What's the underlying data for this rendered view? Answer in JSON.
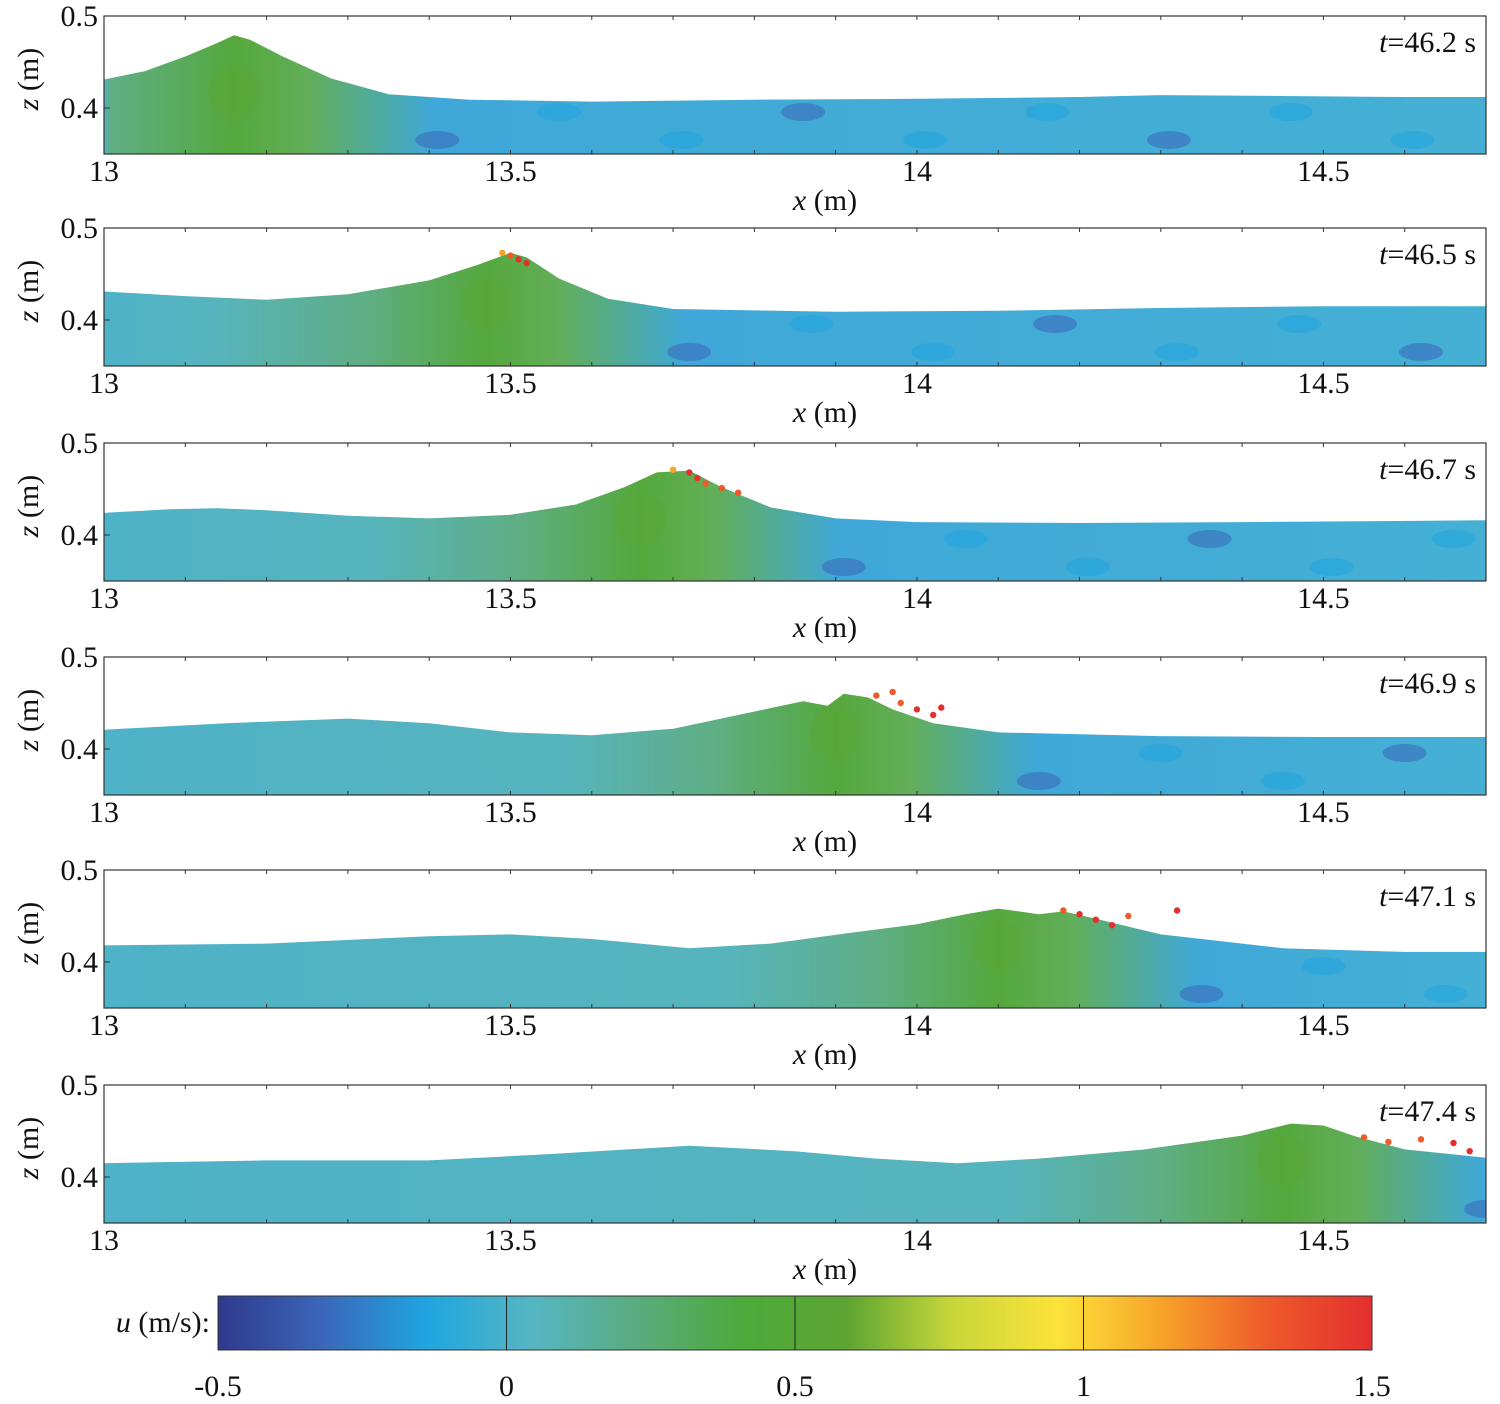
{
  "figure": {
    "xlabel_var": "x",
    "xlabel_unit": "(m)",
    "ylabel_var": "z",
    "ylabel_unit": "(m)",
    "time_prefix": "t",
    "time_unit": "s"
  },
  "chart_data": {
    "type": "heatmap",
    "description_field": "Horizontal velocity u over the free-surface water profile for six time instants",
    "xlim": [
      13,
      14.7
    ],
    "ylim": [
      0.35,
      0.5
    ],
    "x_ticks": [
      13,
      13.5,
      14,
      14.5
    ],
    "x_tick_labels": [
      "13",
      "13.5",
      "14",
      "14.5"
    ],
    "y_ticks": [
      0.4,
      0.5
    ],
    "y_tick_labels": [
      "0.4",
      "0.5"
    ],
    "grid": false,
    "panels": [
      {
        "time": "46.2",
        "surface": [
          [
            13.0,
            0.431
          ],
          [
            13.05,
            0.44
          ],
          [
            13.1,
            0.456
          ],
          [
            13.14,
            0.471
          ],
          [
            13.16,
            0.479
          ],
          [
            13.18,
            0.474
          ],
          [
            13.22,
            0.456
          ],
          [
            13.28,
            0.432
          ],
          [
            13.35,
            0.415
          ],
          [
            13.45,
            0.409
          ],
          [
            13.6,
            0.407
          ],
          [
            13.8,
            0.409
          ],
          [
            14.0,
            0.41
          ],
          [
            14.2,
            0.412
          ],
          [
            14.3,
            0.414
          ],
          [
            14.45,
            0.413
          ],
          [
            14.6,
            0.412
          ],
          [
            14.7,
            0.412
          ]
        ],
        "crests": [
          {
            "x": 13.16,
            "u": 0.55
          }
        ],
        "spray": []
      },
      {
        "time": "46.5",
        "surface": [
          [
            13.0,
            0.431
          ],
          [
            13.1,
            0.426
          ],
          [
            13.2,
            0.422
          ],
          [
            13.3,
            0.428
          ],
          [
            13.4,
            0.443
          ],
          [
            13.46,
            0.46
          ],
          [
            13.5,
            0.473
          ],
          [
            13.52,
            0.468
          ],
          [
            13.56,
            0.445
          ],
          [
            13.62,
            0.423
          ],
          [
            13.7,
            0.412
          ],
          [
            13.9,
            0.409
          ],
          [
            14.1,
            0.41
          ],
          [
            14.3,
            0.413
          ],
          [
            14.5,
            0.415
          ],
          [
            14.7,
            0.415
          ]
        ],
        "crests": [
          {
            "x": 13.47,
            "u": 0.55
          }
        ],
        "spray": [
          {
            "x": 13.49,
            "y": 0.473,
            "u": 1.1
          },
          {
            "x": 13.5,
            "y": 0.47,
            "u": 1.4
          },
          {
            "x": 13.51,
            "y": 0.466,
            "u": 1.45
          },
          {
            "x": 13.52,
            "y": 0.462,
            "u": 1.5
          }
        ]
      },
      {
        "time": "46.7",
        "surface": [
          [
            13.0,
            0.424
          ],
          [
            13.08,
            0.428
          ],
          [
            13.14,
            0.429
          ],
          [
            13.2,
            0.427
          ],
          [
            13.3,
            0.421
          ],
          [
            13.4,
            0.418
          ],
          [
            13.5,
            0.422
          ],
          [
            13.58,
            0.433
          ],
          [
            13.64,
            0.452
          ],
          [
            13.68,
            0.468
          ],
          [
            13.72,
            0.47
          ],
          [
            13.76,
            0.452
          ],
          [
            13.82,
            0.43
          ],
          [
            13.9,
            0.418
          ],
          [
            14.0,
            0.414
          ],
          [
            14.2,
            0.413
          ],
          [
            14.4,
            0.414
          ],
          [
            14.7,
            0.416
          ]
        ],
        "crests": [
          {
            "x": 13.66,
            "u": 0.55
          }
        ],
        "spray": [
          {
            "x": 13.7,
            "y": 0.471,
            "u": 1.2
          },
          {
            "x": 13.72,
            "y": 0.468,
            "u": 1.45
          },
          {
            "x": 13.73,
            "y": 0.462,
            "u": 1.5
          },
          {
            "x": 13.74,
            "y": 0.456,
            "u": 1.4
          },
          {
            "x": 13.76,
            "y": 0.451,
            "u": 1.35
          },
          {
            "x": 13.78,
            "y": 0.446,
            "u": 1.3
          }
        ]
      },
      {
        "time": "46.9",
        "surface": [
          [
            13.0,
            0.421
          ],
          [
            13.15,
            0.428
          ],
          [
            13.3,
            0.433
          ],
          [
            13.4,
            0.428
          ],
          [
            13.5,
            0.418
          ],
          [
            13.6,
            0.415
          ],
          [
            13.7,
            0.422
          ],
          [
            13.78,
            0.437
          ],
          [
            13.86,
            0.452
          ],
          [
            13.89,
            0.447
          ],
          [
            13.91,
            0.46
          ],
          [
            13.94,
            0.456
          ],
          [
            13.97,
            0.443
          ],
          [
            14.02,
            0.428
          ],
          [
            14.1,
            0.418
          ],
          [
            14.3,
            0.414
          ],
          [
            14.5,
            0.413
          ],
          [
            14.7,
            0.413
          ]
        ],
        "crests": [
          {
            "x": 13.9,
            "u": 0.55
          }
        ],
        "spray": [
          {
            "x": 13.95,
            "y": 0.458,
            "u": 1.3
          },
          {
            "x": 13.98,
            "y": 0.45,
            "u": 1.4
          },
          {
            "x": 14.0,
            "y": 0.443,
            "u": 1.5
          },
          {
            "x": 14.02,
            "y": 0.437,
            "u": 1.45
          },
          {
            "x": 13.97,
            "y": 0.462,
            "u": 1.35
          },
          {
            "x": 14.03,
            "y": 0.445,
            "u": 1.5
          }
        ]
      },
      {
        "time": "47.1",
        "surface": [
          [
            13.0,
            0.418
          ],
          [
            13.2,
            0.42
          ],
          [
            13.4,
            0.428
          ],
          [
            13.5,
            0.43
          ],
          [
            13.6,
            0.425
          ],
          [
            13.72,
            0.415
          ],
          [
            13.82,
            0.42
          ],
          [
            13.92,
            0.432
          ],
          [
            14.0,
            0.441
          ],
          [
            14.06,
            0.452
          ],
          [
            14.1,
            0.458
          ],
          [
            14.15,
            0.452
          ],
          [
            14.18,
            0.455
          ],
          [
            14.22,
            0.447
          ],
          [
            14.3,
            0.43
          ],
          [
            14.45,
            0.415
          ],
          [
            14.6,
            0.411
          ],
          [
            14.7,
            0.411
          ]
        ],
        "crests": [
          {
            "x": 14.1,
            "u": 0.55
          }
        ],
        "spray": [
          {
            "x": 14.18,
            "y": 0.456,
            "u": 1.3
          },
          {
            "x": 14.2,
            "y": 0.452,
            "u": 1.45
          },
          {
            "x": 14.22,
            "y": 0.446,
            "u": 1.5
          },
          {
            "x": 14.24,
            "y": 0.44,
            "u": 1.5
          },
          {
            "x": 14.26,
            "y": 0.45,
            "u": 1.4
          },
          {
            "x": 14.32,
            "y": 0.456,
            "u": 1.5
          }
        ]
      },
      {
        "time": "47.4",
        "surface": [
          [
            13.0,
            0.415
          ],
          [
            13.2,
            0.418
          ],
          [
            13.4,
            0.418
          ],
          [
            13.55,
            0.425
          ],
          [
            13.72,
            0.434
          ],
          [
            13.85,
            0.428
          ],
          [
            13.95,
            0.42
          ],
          [
            14.05,
            0.415
          ],
          [
            14.15,
            0.42
          ],
          [
            14.28,
            0.43
          ],
          [
            14.4,
            0.445
          ],
          [
            14.46,
            0.458
          ],
          [
            14.5,
            0.456
          ],
          [
            14.54,
            0.444
          ],
          [
            14.6,
            0.43
          ],
          [
            14.7,
            0.421
          ]
        ],
        "crests": [
          {
            "x": 14.45,
            "u": 0.55
          }
        ],
        "spray": [
          {
            "x": 14.55,
            "y": 0.443,
            "u": 1.3
          },
          {
            "x": 14.58,
            "y": 0.438,
            "u": 1.4
          },
          {
            "x": 14.62,
            "y": 0.441,
            "u": 1.4
          },
          {
            "x": 14.66,
            "y": 0.437,
            "u": 1.45
          },
          {
            "x": 14.68,
            "y": 0.428,
            "u": 1.5
          }
        ]
      }
    ],
    "colorbar": {
      "label_var": "u",
      "label_unit": "(m/s):",
      "range": [
        -0.5,
        1.5
      ],
      "ticks": [
        -0.5,
        0,
        0.5,
        1,
        1.5
      ],
      "tick_labels": [
        "-0.5",
        "0",
        "0.5",
        "1",
        "1.5"
      ],
      "colors": [
        "#2e3a8c",
        "#3b66b9",
        "#1fa6e0",
        "#56b6c2",
        "#5aab7e",
        "#4caa3a",
        "#5da532",
        "#c8d63a",
        "#fde33a",
        "#f6a329",
        "#ee5a2a",
        "#e32f2f"
      ]
    }
  }
}
